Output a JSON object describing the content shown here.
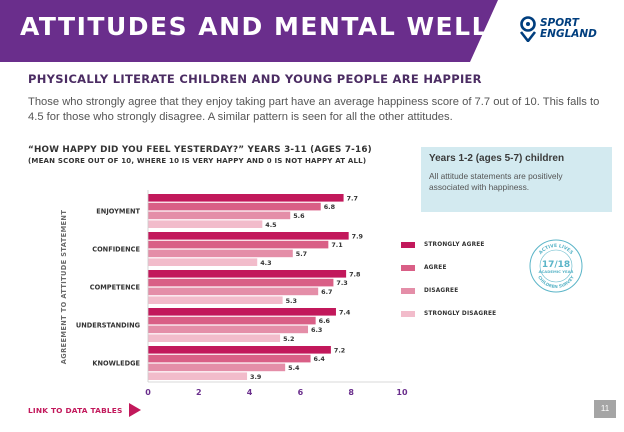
{
  "header": {
    "title": "ATTITUDES AND MENTAL WELLBEING",
    "logo_text_line1": "SPORT",
    "logo_text_line2": "ENGLAND",
    "banner_color": "#6a2e8c"
  },
  "subtitle": "PHYSICALLY LITERATE CHILDREN AND YOUNG PEOPLE ARE HAPPIER",
  "intro_text": "Those who strongly agree that they enjoy taking part have an average happiness score of 7.7 out of 10. This falls to 4.5 for those who strongly disagree. A similar pattern is seen for all the other attitudes.",
  "info_box": {
    "title": "Years 1-2 (ages 5-7) children",
    "text": "All attitude statements are positively associated with happiness."
  },
  "stamp": {
    "line1": "ACTIVE LIVES",
    "line2": "17/18",
    "line3": "ACADEMIC YEAR",
    "line4": "CHILDREN SURVEY"
  },
  "link_label": "LINK TO DATA TABLES",
  "page_number": "11",
  "chart_data": {
    "type": "bar",
    "orientation": "horizontal",
    "title": "“HOW HAPPY DID YOU FEEL YESTERDAY?” YEARS 3-11 (AGES 7-16)",
    "subtitle": "(MEAN SCORE OUT OF 10, WHERE 10 IS VERY HAPPY AND 0 IS NOT HAPPY AT ALL)",
    "ylabel": "AGREEMENT TO ATTITUDE STATEMENT",
    "xlabel": "",
    "categories": [
      "ENJOYMENT",
      "CONFIDENCE",
      "COMPETENCE",
      "UNDERSTANDING",
      "KNOWLEDGE"
    ],
    "series": [
      {
        "name": "STRONGLY AGREE",
        "color": "#c2185b",
        "values": [
          7.7,
          7.9,
          7.8,
          7.4,
          7.2
        ]
      },
      {
        "name": "AGREE",
        "color": "#d95f86",
        "values": [
          6.8,
          7.1,
          7.3,
          6.6,
          6.4
        ]
      },
      {
        "name": "DISAGREE",
        "color": "#e48ea8",
        "values": [
          5.6,
          5.7,
          6.7,
          6.3,
          5.4
        ]
      },
      {
        "name": "STRONGLY DISAGREE",
        "color": "#f2bccb",
        "values": [
          4.5,
          4.3,
          5.3,
          5.2,
          3.9
        ]
      }
    ],
    "xlim": [
      0,
      10
    ],
    "xticks": [
      "0",
      "2",
      "4",
      "6",
      "8",
      "10"
    ],
    "legend_position": "right",
    "grid": false
  }
}
